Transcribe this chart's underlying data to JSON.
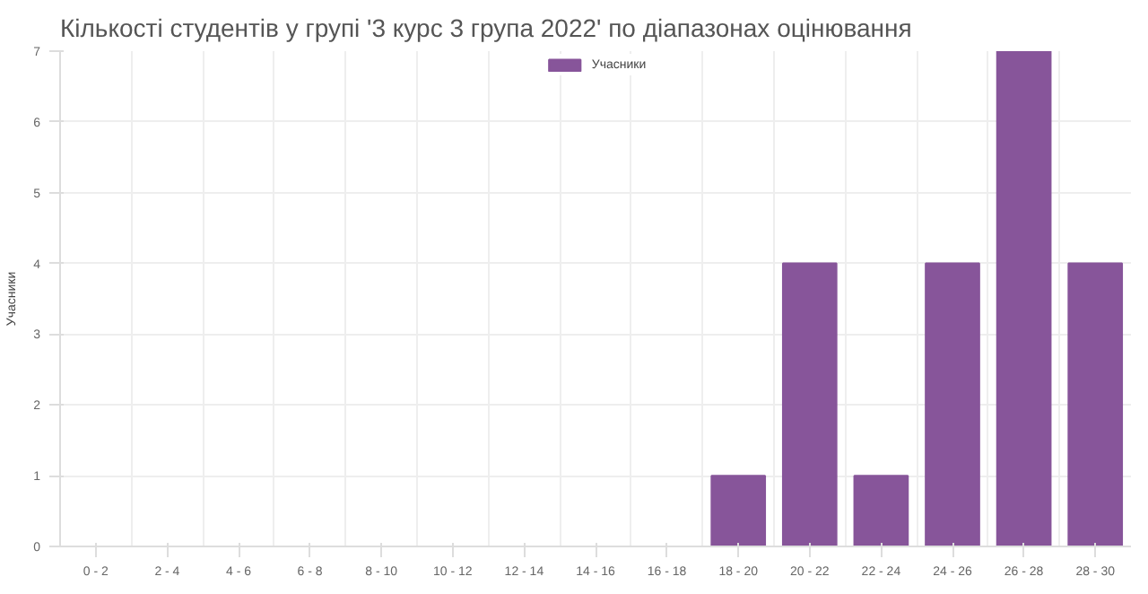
{
  "chart_data": {
    "type": "bar",
    "title": "Кількості студентів у групі '3 курс 3 група 2022' по діапазонах оцінювання",
    "ylabel": "Учасники",
    "categories": [
      "0 - 2",
      "2 - 4",
      "4 - 6",
      "6 - 8",
      "8 - 10",
      "10 - 12",
      "12 - 14",
      "14 - 16",
      "16 - 18",
      "18 - 20",
      "20 - 22",
      "22 - 24",
      "24 - 26",
      "26 - 28",
      "28 - 30"
    ],
    "series": [
      {
        "name": "Учасники",
        "color": "#87559a",
        "values": [
          0,
          0,
          0,
          0,
          0,
          0,
          0,
          0,
          0,
          1,
          4,
          1,
          4,
          7,
          4
        ]
      }
    ],
    "ylim": [
      0,
      7
    ],
    "yticks": [
      0,
      1,
      2,
      3,
      4,
      5,
      6,
      7
    ],
    "grid": true,
    "legend": "top"
  }
}
